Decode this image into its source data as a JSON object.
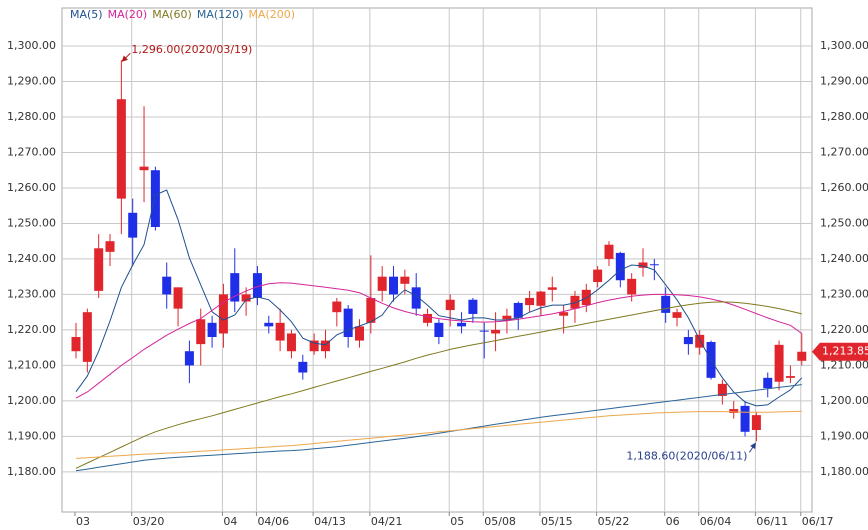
{
  "chart_data": {
    "type": "candlestick",
    "categories": [
      "03",
      null,
      null,
      null,
      null,
      "03/20",
      null,
      null,
      null,
      null,
      null,
      null,
      null,
      "04",
      null,
      null,
      "04/06",
      null,
      null,
      null,
      null,
      "04/13",
      null,
      null,
      null,
      null,
      "04/21",
      null,
      null,
      null,
      null,
      null,
      null,
      "05",
      null,
      null,
      "05/08",
      null,
      null,
      null,
      null,
      "05/15",
      null,
      null,
      null,
      null,
      "05/22",
      null,
      null,
      null,
      null,
      null,
      "06",
      null,
      null,
      "06/04",
      null,
      null,
      null,
      null,
      "06/11",
      null,
      null,
      null,
      "06/17"
    ],
    "open": [
      1214,
      1211,
      1231,
      1242,
      1257,
      1253,
      1265,
      1265,
      1235,
      1226,
      1214,
      1216,
      1222,
      1219,
      1236,
      1228,
      1236,
      1222,
      1217,
      1214,
      1211,
      1214,
      1214,
      1225,
      1226,
      1217,
      1222,
      1231,
      1235,
      1233,
      1232,
      1222,
      1222,
      1225.6,
      1222,
      1228.5,
      1219.8,
      1219,
      1223,
      1227.6,
      1227,
      1226.8,
      1231.3,
      1224,
      1226,
      1227,
      1233.5,
      1240,
      1241.7,
      1230,
      1237.5,
      1238.5,
      1229.6,
      1223.4,
      1218,
      1215,
      1216.6,
      1201.4,
      1196.6,
      1198.6,
      1191.8,
      1206.5,
      1205.4,
      1206.5,
      1211.3
    ],
    "high": [
      1222,
      1226,
      1247,
      1247,
      1296,
      1257,
      1283,
      1266,
      1239,
      1232,
      1217,
      1226,
      1224,
      1233,
      1243,
      1232,
      1238,
      1224,
      1226,
      1220,
      1213,
      1219,
      1220,
      1229,
      1227,
      1223,
      1241,
      1238,
      1238,
      1237,
      1236,
      1226,
      1223,
      1230,
      1225,
      1229,
      1222,
      1225,
      1226,
      1228,
      1231,
      1231,
      1235,
      1227,
      1231,
      1233,
      1238,
      1245,
      1242,
      1236,
      1243,
      1240,
      1232,
      1226,
      1220,
      1220,
      1217,
      1206,
      1200,
      1200,
      1197,
      1208,
      1217,
      1210,
      1219
    ],
    "low": [
      1212,
      1208,
      1229,
      1238,
      1247,
      1238,
      1256,
      1248,
      1226,
      1221,
      1205,
      1210,
      1215,
      1215,
      1225,
      1224,
      1227,
      1219,
      1214,
      1212,
      1206,
      1213,
      1212,
      1221,
      1215,
      1215,
      1219,
      1228,
      1228,
      1230,
      1224,
      1221,
      1216,
      1221,
      1219,
      1222,
      1212,
      1214,
      1219,
      1220,
      1225,
      1224,
      1228,
      1219,
      1222,
      1225,
      1232,
      1238,
      1232,
      1228,
      1235,
      1234,
      1222,
      1221,
      1213,
      1213,
      1206,
      1199,
      1195,
      1190,
      1188.6,
      1201,
      1203,
      1205,
      1210
    ],
    "close": [
      1218,
      1225,
      1243,
      1245,
      1285,
      1246,
      1266,
      1249,
      1230,
      1232,
      1210,
      1223,
      1218,
      1230,
      1228,
      1230,
      1229,
      1221,
      1222,
      1219,
      1208,
      1217,
      1217,
      1228,
      1218,
      1221,
      1229,
      1235,
      1230,
      1235,
      1226,
      1224.5,
      1218,
      1228.5,
      1221,
      1224.5,
      1219.7,
      1220,
      1224,
      1223.4,
      1229,
      1230.8,
      1232,
      1225,
      1229.6,
      1231.3,
      1237,
      1244,
      1234,
      1234.4,
      1239,
      1238.3,
      1224.8,
      1225,
      1216,
      1218.6,
      1206.5,
      1204.8,
      1197.7,
      1191.3,
      1196,
      1203.6,
      1215.8,
      1207,
      1213.85
    ],
    "up_color": "#e0262c",
    "down_color": "#1f2fe8",
    "series": [
      {
        "name": "MA(5)",
        "color": "#1f4f8f",
        "values": [
          1202.6,
          1207.0,
          1214.0,
          1222.5,
          1232.0,
          1238.3,
          1244.0,
          1258.0,
          1259.4,
          1251.0,
          1240.3,
          1232.7,
          1225.1,
          1222.8,
          1224.2,
          1228.5,
          1229.3,
          1228.5,
          1225.6,
          1222.3,
          1217.7,
          1216.3,
          1215.8,
          1218.6,
          1220.0,
          1221.1,
          1222.3,
          1224.2,
          1228.5,
          1231.3,
          1229.6,
          1227.0,
          1224.0,
          1223.4,
          1222.8,
          1223.4,
          1223.4,
          1222.8,
          1222.8,
          1223.4,
          1225.0,
          1226.2,
          1227.0,
          1227.0,
          1227.6,
          1229.0,
          1231.3,
          1234.0,
          1236.9,
          1238.3,
          1238.0,
          1236.9,
          1232.7,
          1228.5,
          1223.4,
          1217.2,
          1211.5,
          1206.5,
          1202.5,
          1199.7,
          1198.6,
          1198.9,
          1201.1,
          1203.1,
          1206.5
        ]
      },
      {
        "name": "MA(20)",
        "color": "#d6249a",
        "values": [
          1200.8,
          1202.5,
          1205.0,
          1207.5,
          1210.0,
          1212.2,
          1214.5,
          1216.5,
          1218.5,
          1220.2,
          1221.8,
          1223.2,
          1225.5,
          1227.8,
          1229.5,
          1231.0,
          1232.2,
          1233.0,
          1233.3,
          1233.2,
          1232.8,
          1232.4,
          1232.0,
          1231.6,
          1231.2,
          1230.5,
          1229.0,
          1227.5,
          1226.2,
          1225.2,
          1224.4,
          1223.7,
          1223.2,
          1222.8,
          1222.5,
          1222.3,
          1222.2,
          1222.3,
          1222.6,
          1223.0,
          1223.5,
          1224.0,
          1224.5,
          1225.2,
          1226.0,
          1226.8,
          1227.7,
          1228.4,
          1229.0,
          1229.5,
          1229.8,
          1230.0,
          1230.0,
          1229.9,
          1229.7,
          1229.3,
          1228.7,
          1228.0,
          1227.0,
          1225.8,
          1224.6,
          1223.4,
          1222.3,
          1221.3,
          1219.0
        ]
      },
      {
        "name": "MA(60)",
        "color": "#7f7a1e",
        "values": [
          1181.0,
          1182.5,
          1184.0,
          1185.5,
          1187.0,
          1188.5,
          1190.0,
          1191.3,
          1192.3,
          1193.3,
          1194.2,
          1195.0,
          1195.8,
          1196.7,
          1197.6,
          1198.5,
          1199.4,
          1200.3,
          1201.2,
          1202.0,
          1202.9,
          1203.8,
          1204.7,
          1205.6,
          1206.5,
          1207.4,
          1208.3,
          1209.2,
          1210.1,
          1211.0,
          1212.0,
          1212.9,
          1213.7,
          1214.5,
          1215.2,
          1215.8,
          1216.4,
          1217.0,
          1217.6,
          1218.2,
          1218.8,
          1219.4,
          1220.0,
          1220.6,
          1221.2,
          1221.8,
          1222.4,
          1223.0,
          1223.6,
          1224.2,
          1224.8,
          1225.4,
          1226.0,
          1226.6,
          1227.1,
          1227.5,
          1227.8,
          1227.9,
          1227.8,
          1227.5,
          1227.1,
          1226.6,
          1226.0,
          1225.3,
          1224.5
        ]
      },
      {
        "name": "MA(120)",
        "color": "#2a6496",
        "values": [
          1180.3,
          1180.8,
          1181.3,
          1181.8,
          1182.3,
          1182.8,
          1183.3,
          1183.6,
          1183.9,
          1184.1,
          1184.3,
          1184.5,
          1184.7,
          1184.9,
          1185.1,
          1185.3,
          1185.5,
          1185.7,
          1185.9,
          1186.0,
          1186.2,
          1186.5,
          1186.8,
          1187.1,
          1187.5,
          1187.9,
          1188.3,
          1188.7,
          1189.1,
          1189.5,
          1189.9,
          1190.4,
          1190.9,
          1191.4,
          1191.9,
          1192.4,
          1192.9,
          1193.4,
          1193.9,
          1194.4,
          1194.9,
          1195.4,
          1195.8,
          1196.2,
          1196.6,
          1197.0,
          1197.4,
          1197.8,
          1198.2,
          1198.6,
          1199.0,
          1199.4,
          1199.8,
          1200.2,
          1200.6,
          1201.0,
          1201.4,
          1201.8,
          1202.2,
          1202.6,
          1203.0,
          1203.4,
          1203.8,
          1204.2,
          1204.6
        ]
      },
      {
        "name": "MA(200)",
        "color": "#eea84a",
        "values": [
          1183.8,
          1184.0,
          1184.2,
          1184.4,
          1184.6,
          1184.8,
          1185.0,
          1185.1,
          1185.3,
          1185.4,
          1185.6,
          1185.8,
          1186.0,
          1186.2,
          1186.4,
          1186.6,
          1186.8,
          1187.0,
          1187.2,
          1187.4,
          1187.7,
          1188.0,
          1188.3,
          1188.6,
          1188.9,
          1189.2,
          1189.5,
          1189.8,
          1190.1,
          1190.4,
          1190.7,
          1191.0,
          1191.3,
          1191.6,
          1191.9,
          1192.2,
          1192.5,
          1192.8,
          1193.1,
          1193.4,
          1193.7,
          1194.0,
          1194.3,
          1194.6,
          1194.9,
          1195.2,
          1195.5,
          1195.8,
          1196.0,
          1196.2,
          1196.4,
          1196.6,
          1196.7,
          1196.8,
          1196.9,
          1197.0,
          1197.0,
          1197.0,
          1196.9,
          1196.8,
          1196.8,
          1196.8,
          1196.9,
          1197.0,
          1197.1
        ]
      }
    ],
    "ylim": [
      1168.7,
      1310.7
    ],
    "yticks": [
      {
        "value": 1180,
        "label": "1,180.00"
      },
      {
        "value": 1190,
        "label": "1,190.00"
      },
      {
        "value": 1200,
        "label": "1,200.00"
      },
      {
        "value": 1210,
        "label": "1,210.00"
      },
      {
        "value": 1220,
        "label": "1,220.00"
      },
      {
        "value": 1230,
        "label": "1,230.00"
      },
      {
        "value": 1240,
        "label": "1,240.00"
      },
      {
        "value": 1250,
        "label": "1,250.00"
      },
      {
        "value": 1260,
        "label": "1,260.00"
      },
      {
        "value": 1270,
        "label": "1,270.00"
      },
      {
        "value": 1280,
        "label": "1,280.00"
      },
      {
        "value": 1290,
        "label": "1,290.00"
      },
      {
        "value": 1300,
        "label": "1,300.00"
      }
    ],
    "grid": true,
    "annotations": [
      "1,296.00(2020/03/19)",
      "1,188.60(2020/06/11)"
    ],
    "last_label": "1,213.85"
  }
}
